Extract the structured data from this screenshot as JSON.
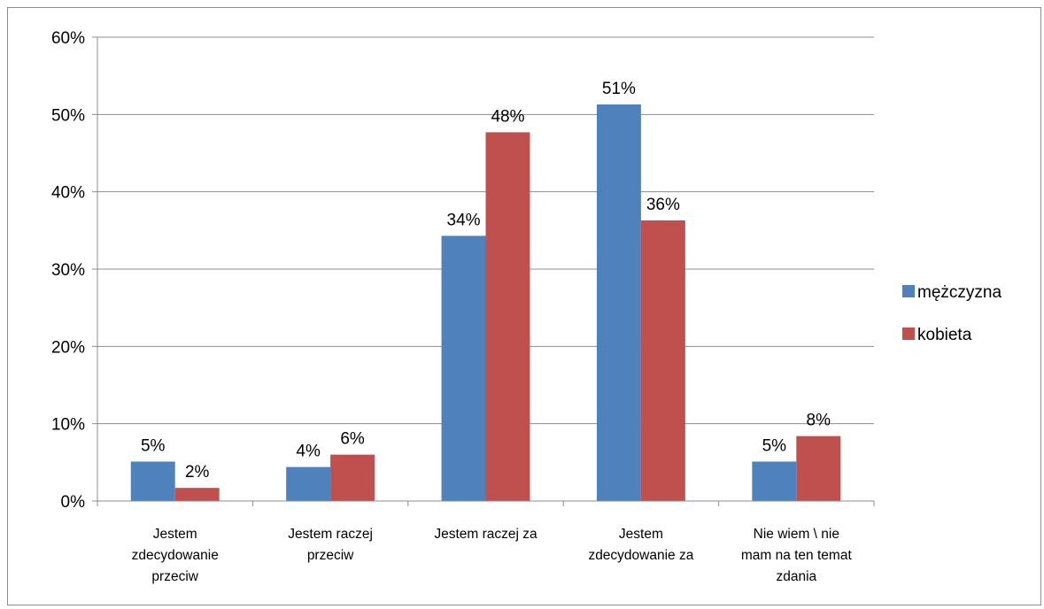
{
  "chart_data": {
    "type": "bar",
    "categories": [
      [
        "Jestem",
        "zdecydowanie",
        "przeciw"
      ],
      [
        "Jestem raczej",
        "przeciw"
      ],
      [
        "Jestem raczej za"
      ],
      [
        "Jestem",
        "zdecydowanie za"
      ],
      [
        "Nie wiem \\ nie",
        "mam na ten temat",
        "zdania"
      ]
    ],
    "series": [
      {
        "name": "mężczyzna",
        "color": "#4f81bd",
        "values": [
          5.1,
          4.4,
          34.3,
          51.3,
          5.1
        ],
        "labels": [
          "5%",
          "4%",
          "34%",
          "51%",
          "5%"
        ]
      },
      {
        "name": "kobieta",
        "color": "#c0504d",
        "values": [
          1.7,
          6.0,
          47.7,
          36.3,
          8.4
        ],
        "labels": [
          "2%",
          "6%",
          "48%",
          "36%",
          "8%"
        ]
      }
    ],
    "ylim": [
      0,
      60
    ],
    "yticks": [
      "0%",
      "10%",
      "20%",
      "30%",
      "40%",
      "50%",
      "60%"
    ],
    "title": "",
    "xlabel": "",
    "ylabel": "",
    "grid": true,
    "legend_position": "right"
  }
}
